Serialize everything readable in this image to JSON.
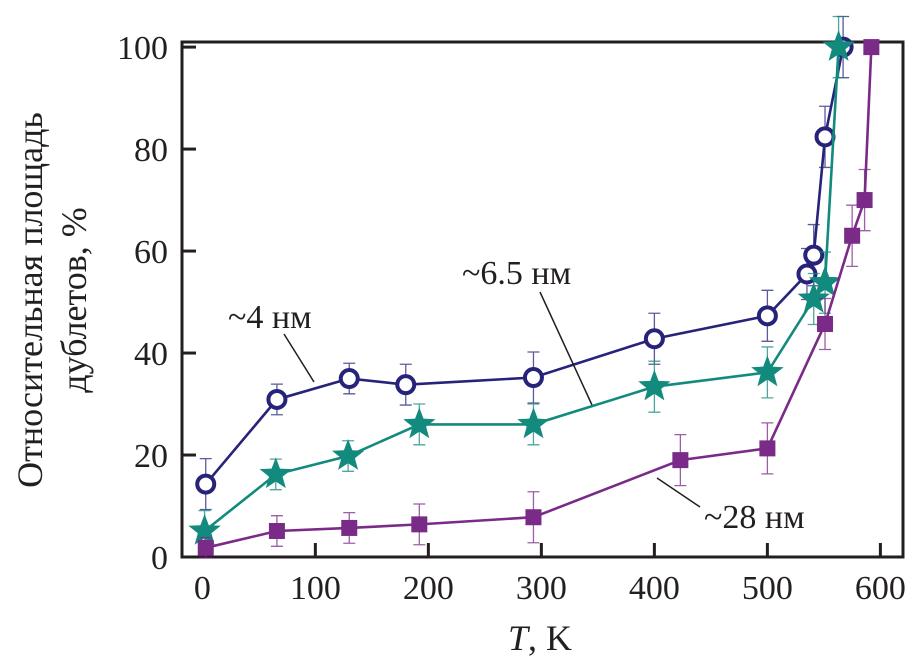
{
  "chart_data": {
    "type": "line",
    "xlabel_italic": "T",
    "xlabel_rest": ", K",
    "ylabel_line1": "Относительная площадь",
    "ylabel_line2": "дублетов, %",
    "xlim": [
      -18,
      620
    ],
    "ylim": [
      0,
      101
    ],
    "xticks": [
      0,
      100,
      200,
      300,
      400,
      500,
      600
    ],
    "yticks": [
      0,
      20,
      40,
      60,
      80,
      100
    ],
    "grid": false,
    "series": [
      {
        "name": "~4 нм",
        "marker": "open-circle",
        "color": "#27237a",
        "x": [
          3,
          66,
          130,
          180,
          293,
          400,
          500,
          535,
          541,
          551,
          567
        ],
        "y": [
          14.3,
          30.9,
          35,
          33.8,
          35.2,
          42.8,
          47.3,
          55.5,
          59.2,
          82.4,
          100
        ],
        "err": [
          5,
          3,
          3,
          4,
          5,
          5,
          5,
          5,
          6,
          6,
          6
        ]
      },
      {
        "name": "~6.5 нм",
        "marker": "star",
        "color": "#138a7e",
        "x": [
          2,
          65,
          129,
          192,
          293,
          400,
          500,
          541,
          551,
          563
        ],
        "y": [
          5.1,
          16.2,
          19.8,
          26,
          26,
          33.4,
          36.2,
          50.6,
          53.8,
          100
        ],
        "err": [
          4,
          3,
          3,
          4,
          4,
          5,
          5,
          5,
          6,
          6
        ]
      },
      {
        "name": "~28 нм",
        "marker": "filled-square",
        "color": "#7a2a87",
        "x": [
          3,
          66,
          130,
          192,
          293,
          423,
          500,
          551,
          575,
          586,
          592
        ],
        "y": [
          1.8,
          5.1,
          5.7,
          6.4,
          7.8,
          19,
          21.3,
          45.7,
          63,
          70,
          100
        ],
        "err": [
          2,
          3,
          3,
          4,
          5,
          5,
          5,
          5,
          6,
          6,
          0
        ]
      }
    ],
    "annotations": [
      "~4 нм",
      "~6.5 нм",
      "~28 нм"
    ]
  }
}
